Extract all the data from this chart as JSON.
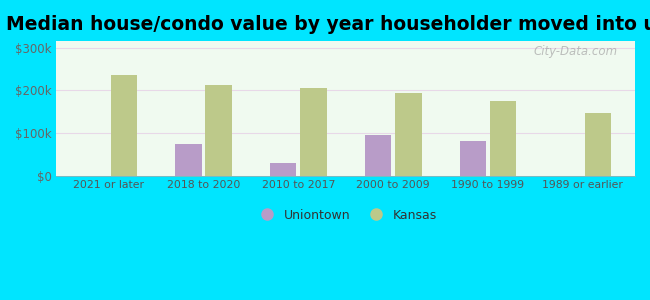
{
  "title": "Median house/condo value by year householder moved into unit",
  "categories": [
    "2021 or later",
    "2018 to 2020",
    "2010 to 2017",
    "2000 to 2009",
    "1990 to 1999",
    "1989 or earlier"
  ],
  "uniontown_values": [
    null,
    75000,
    30000,
    95000,
    82000,
    null
  ],
  "kansas_values": [
    237000,
    212000,
    205000,
    193000,
    175000,
    148000
  ],
  "uniontown_color": "#b89cc8",
  "kansas_color": "#bdc98a",
  "background_color": "#00e5ff",
  "plot_bg_start": "#f0faf0",
  "plot_bg_end": "#d8f0d8",
  "ylabel_ticks": [
    "$0",
    "$100k",
    "$200k",
    "$300k"
  ],
  "ytick_values": [
    0,
    100000,
    200000,
    300000
  ],
  "ylim": [
    0,
    315000
  ],
  "bar_width": 0.28,
  "bar_gap": 0.04,
  "legend_uniontown": "Uniontown",
  "legend_kansas": "Kansas",
  "watermark": "City-Data.com",
  "title_fontsize": 13.5
}
